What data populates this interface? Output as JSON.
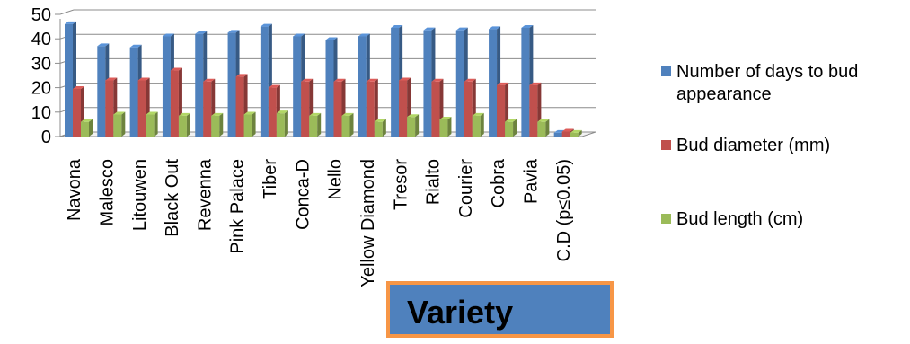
{
  "chart_data": {
    "type": "bar",
    "style": "3d-clustered-column",
    "categories": [
      "Navona",
      "Malesco",
      "Litouwen",
      "Black Out",
      "Revenna",
      "Pink Palace",
      "Tiber",
      "Conca-D",
      "Nello",
      "Yellow Diamond",
      "Tresor",
      "Rialto",
      "Courier",
      "Cobra",
      "Pavia",
      "C.D (p≤0.05)"
    ],
    "series": [
      {
        "name": "Number of days to bud appearance",
        "color": "#4f81bd",
        "values": [
          46,
          37,
          36.5,
          41,
          42,
          42.5,
          45,
          41,
          39.5,
          41,
          44.5,
          43.5,
          43.5,
          44,
          44.5,
          1.5
        ]
      },
      {
        "name": "Bud diameter (mm)",
        "color": "#c0504d",
        "values": [
          19.5,
          23,
          23,
          27,
          22.5,
          24.5,
          20,
          22.5,
          22.5,
          22.5,
          23,
          22.5,
          22.5,
          21,
          21,
          2
        ]
      },
      {
        "name": "Bud length (cm)",
        "color": "#9bbb59",
        "values": [
          6,
          9,
          9,
          8.5,
          8.5,
          9,
          9.5,
          8.5,
          8.5,
          6,
          8,
          7,
          8.5,
          6,
          6,
          1.5
        ]
      }
    ],
    "xlabel": "Variety",
    "ylabel": "",
    "ylim": [
      0,
      50
    ],
    "yticks": [
      "0",
      "10",
      "20",
      "30",
      "40",
      "50"
    ],
    "grid": true,
    "legend": "right"
  }
}
